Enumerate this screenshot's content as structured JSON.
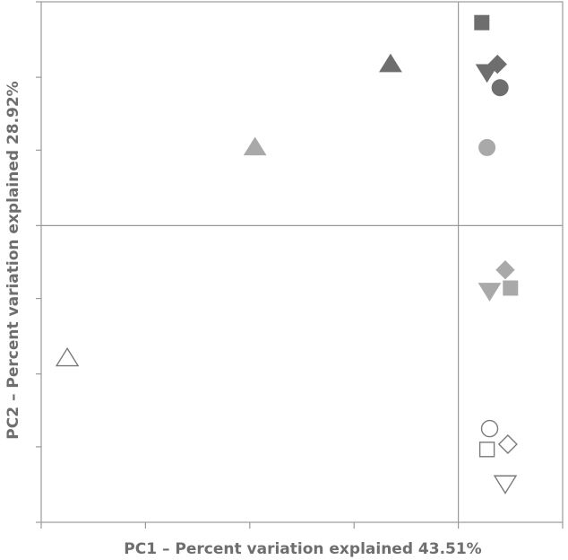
{
  "chart_data": {
    "type": "scatter",
    "title": "",
    "xlabel": "PC1 – Percent variation explained 43.51%",
    "ylabel": "PC2 – Percent variation explained 28.92%",
    "xlim": [
      -1,
      1
    ],
    "ylim": [
      -1,
      1
    ],
    "x_ticks": [
      -1,
      -0.6,
      -0.2,
      0.2,
      0.6,
      1
    ],
    "y_ticks": [
      -1,
      -0.71,
      -0.43,
      -0.14,
      0.14,
      0.43,
      0.71,
      1
    ],
    "reference_lines": {
      "x": 0.6,
      "y": 0.14
    },
    "grid": false,
    "colors": {
      "dark": "#6e6e6e",
      "medium": "#a9a9a9",
      "open": "#ffffff",
      "open_stroke": "#7a7a7a",
      "axis": "#9a9a9a"
    },
    "points": [
      {
        "x": 0.69,
        "y": 0.92,
        "marker": "square",
        "fill": "dark"
      },
      {
        "x": 0.75,
        "y": 0.76,
        "marker": "diamond",
        "fill": "dark"
      },
      {
        "x": 0.71,
        "y": 0.73,
        "marker": "triangle-down",
        "fill": "dark"
      },
      {
        "x": 0.76,
        "y": 0.67,
        "marker": "circle",
        "fill": "dark"
      },
      {
        "x": 0.34,
        "y": 0.76,
        "marker": "triangle-up",
        "fill": "dark"
      },
      {
        "x": -0.18,
        "y": 0.44,
        "marker": "triangle-up",
        "fill": "medium"
      },
      {
        "x": 0.71,
        "y": 0.44,
        "marker": "circle",
        "fill": "medium"
      },
      {
        "x": 0.78,
        "y": -0.03,
        "marker": "diamond",
        "fill": "medium"
      },
      {
        "x": 0.72,
        "y": -0.11,
        "marker": "triangle-down",
        "fill": "medium"
      },
      {
        "x": 0.8,
        "y": -0.1,
        "marker": "square",
        "fill": "medium"
      },
      {
        "x": -0.9,
        "y": -0.37,
        "marker": "triangle-up",
        "fill": "open"
      },
      {
        "x": 0.72,
        "y": -0.64,
        "marker": "circle",
        "fill": "open"
      },
      {
        "x": 0.71,
        "y": -0.72,
        "marker": "square",
        "fill": "open"
      },
      {
        "x": 0.79,
        "y": -0.7,
        "marker": "diamond",
        "fill": "open"
      },
      {
        "x": 0.78,
        "y": -0.85,
        "marker": "triangle-down",
        "fill": "open"
      }
    ]
  }
}
